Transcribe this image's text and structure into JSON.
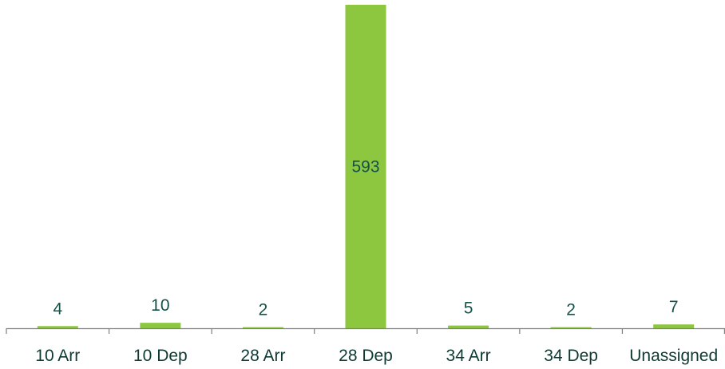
{
  "colors": {
    "bar": "#8DC63F",
    "axis": "#7f7f7f",
    "category_text": "#0e3a33",
    "value_text": "#155249"
  },
  "chart_data": {
    "type": "bar",
    "title": "",
    "xlabel": "",
    "ylabel": "",
    "categories": [
      "10 Arr",
      "10 Dep",
      "28 Arr",
      "28 Dep",
      "34 Arr",
      "34 Dep",
      "Unassigned"
    ],
    "values": [
      4,
      10,
      2,
      593,
      5,
      2,
      7
    ],
    "data_labels": [
      "4",
      "10",
      "2",
      "593",
      "5",
      "2",
      "7"
    ],
    "ylim": [
      0,
      593
    ],
    "grid": false,
    "legend": "none"
  }
}
